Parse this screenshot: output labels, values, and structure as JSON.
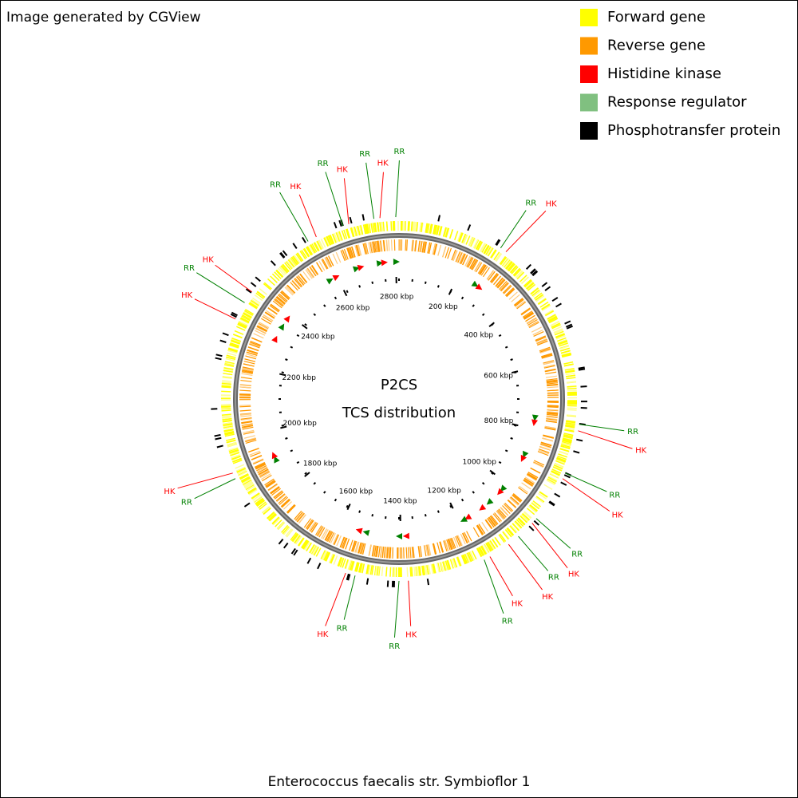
{
  "header": {
    "title": "Image generated by CGView"
  },
  "legend": [
    {
      "label": "Forward gene",
      "color": "#ffff00"
    },
    {
      "label": "Reverse gene",
      "color": "#ff9900"
    },
    {
      "label": "Histidine kinase",
      "color": "#ff0000"
    },
    {
      "label": "Response regulator",
      "color": "#80c080"
    },
    {
      "label": "Phosphotransfer protein",
      "color": "#000000"
    }
  ],
  "chart_data": {
    "type": "circular-genome",
    "title": "P2CS",
    "subtitle": "TCS distribution",
    "caption": "Enterococcus faecalis str. Symbioflor 1",
    "range": [
      0,
      2810
    ],
    "ticks": [
      {
        "value": 200,
        "label": "200 kbp"
      },
      {
        "value": 400,
        "label": "400 kbp"
      },
      {
        "value": 600,
        "label": "600 kbp"
      },
      {
        "value": 800,
        "label": "800 kbp"
      },
      {
        "value": 1000,
        "label": "1000 kbp"
      },
      {
        "value": 1200,
        "label": "1200 kbp"
      },
      {
        "value": 1400,
        "label": "1400 kbp"
      },
      {
        "value": 1600,
        "label": "1600 kbp"
      },
      {
        "value": 1800,
        "label": "1800 kbp"
      },
      {
        "value": 2000,
        "label": "2000 kbp"
      },
      {
        "value": 2200,
        "label": "2200 kbp"
      },
      {
        "value": 2400,
        "label": "2400 kbp"
      },
      {
        "value": 2600,
        "label": "2600 kbp"
      },
      {
        "value": 2800,
        "label": "2800 kbp"
      }
    ],
    "features": [
      {
        "label": "RR",
        "position": 265,
        "color": "#008000"
      },
      {
        "label": "HK",
        "position": 281,
        "color": "#ff0000"
      },
      {
        "label": "RR",
        "position": 765,
        "color": "#008000"
      },
      {
        "label": "HK",
        "position": 781,
        "color": "#ff0000"
      },
      {
        "label": "RR",
        "position": 890,
        "color": "#008000"
      },
      {
        "label": "HK",
        "position": 905,
        "color": "#ff0000"
      },
      {
        "label": "RR",
        "position": 1023,
        "color": "#008000"
      },
      {
        "label": "HK",
        "position": 1038,
        "color": "#ff0000"
      },
      {
        "label": "RR",
        "position": 1085,
        "color": "#008000"
      },
      {
        "label": "HK",
        "position": 1116,
        "color": "#ff0000"
      },
      {
        "label": "HK",
        "position": 1171,
        "color": "#ff0000"
      },
      {
        "label": "RR",
        "position": 1187,
        "color": "#008000"
      },
      {
        "label": "HK",
        "position": 1382,
        "color": "#ff0000"
      },
      {
        "label": "RR",
        "position": 1405,
        "color": "#008000"
      },
      {
        "label": "RR",
        "position": 1514,
        "color": "#008000"
      },
      {
        "label": "HK",
        "position": 1538,
        "color": "#ff0000"
      },
      {
        "label": "RR",
        "position": 1905,
        "color": "#008000"
      },
      {
        "label": "HK",
        "position": 1920,
        "color": "#ff0000"
      },
      {
        "label": "HK",
        "position": 2311,
        "color": "#ff0000"
      },
      {
        "label": "RR",
        "position": 2357,
        "color": "#008000"
      },
      {
        "label": "HK",
        "position": 2389,
        "color": "#ff0000"
      },
      {
        "label": "RR",
        "position": 2576,
        "color": "#008000"
      },
      {
        "label": "HK",
        "position": 2599,
        "color": "#ff0000"
      },
      {
        "label": "RR",
        "position": 2670,
        "color": "#008000"
      },
      {
        "label": "HK",
        "position": 2685,
        "color": "#ff0000"
      },
      {
        "label": "RR",
        "position": 2748,
        "color": "#008000"
      },
      {
        "label": "HK",
        "position": 2763,
        "color": "#ff0000"
      },
      {
        "label": "RR",
        "position": 2802,
        "color": "#008000"
      }
    ]
  }
}
